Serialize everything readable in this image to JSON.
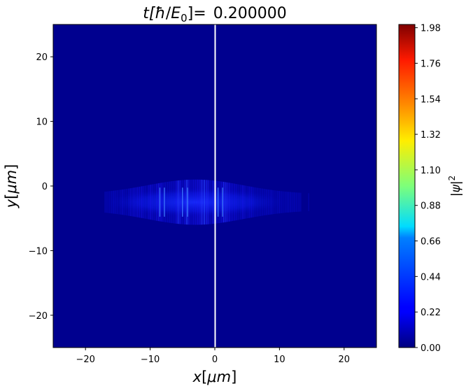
{
  "chart_data": {
    "type": "heatmap",
    "title": {
      "prefix": "t[",
      "hbar": "ħ",
      "slash": "/",
      "energy": "E",
      "energy_sub": "0",
      "suffix": "]",
      "equals": "=",
      "value": "0.200000"
    },
    "xlabel": {
      "var": "x",
      "open": "[",
      "unit": "μm",
      "close": "]"
    },
    "ylabel": {
      "var": "y",
      "open": "[",
      "unit": "μm",
      "close": "]"
    },
    "xlim": [
      -25,
      25
    ],
    "ylim": [
      -25,
      25
    ],
    "x_ticks": [
      -20,
      -10,
      0,
      10,
      20
    ],
    "x_tick_labels": [
      "−20",
      "−10",
      "0",
      "10",
      "20"
    ],
    "y_ticks": [
      20,
      10,
      0,
      -10,
      -20
    ],
    "y_tick_labels": [
      "20",
      "10",
      "0",
      "−10",
      "−20"
    ],
    "colormap": "jet",
    "colorbar": {
      "label_var": "ψ",
      "label_power": "2",
      "vmin": 0,
      "vmax": 2.0,
      "ticks": [
        0.0,
        0.22,
        0.44,
        0.66,
        0.88,
        1.1,
        1.32,
        1.54,
        1.76,
        1.98
      ],
      "tick_labels": [
        "0.00",
        "0.22",
        "0.44",
        "0.66",
        "0.88",
        "1.10",
        "1.32",
        "1.54",
        "1.76",
        "1.98"
      ]
    },
    "background_value": 0.0,
    "wavepacket": {
      "x_range": [
        -17,
        18
      ],
      "y_center": -2.5,
      "y_halfwidth": 2.5,
      "peak_value": 0.35
    },
    "vertical_line": {
      "x": 0,
      "color": "#ffffff"
    }
  }
}
